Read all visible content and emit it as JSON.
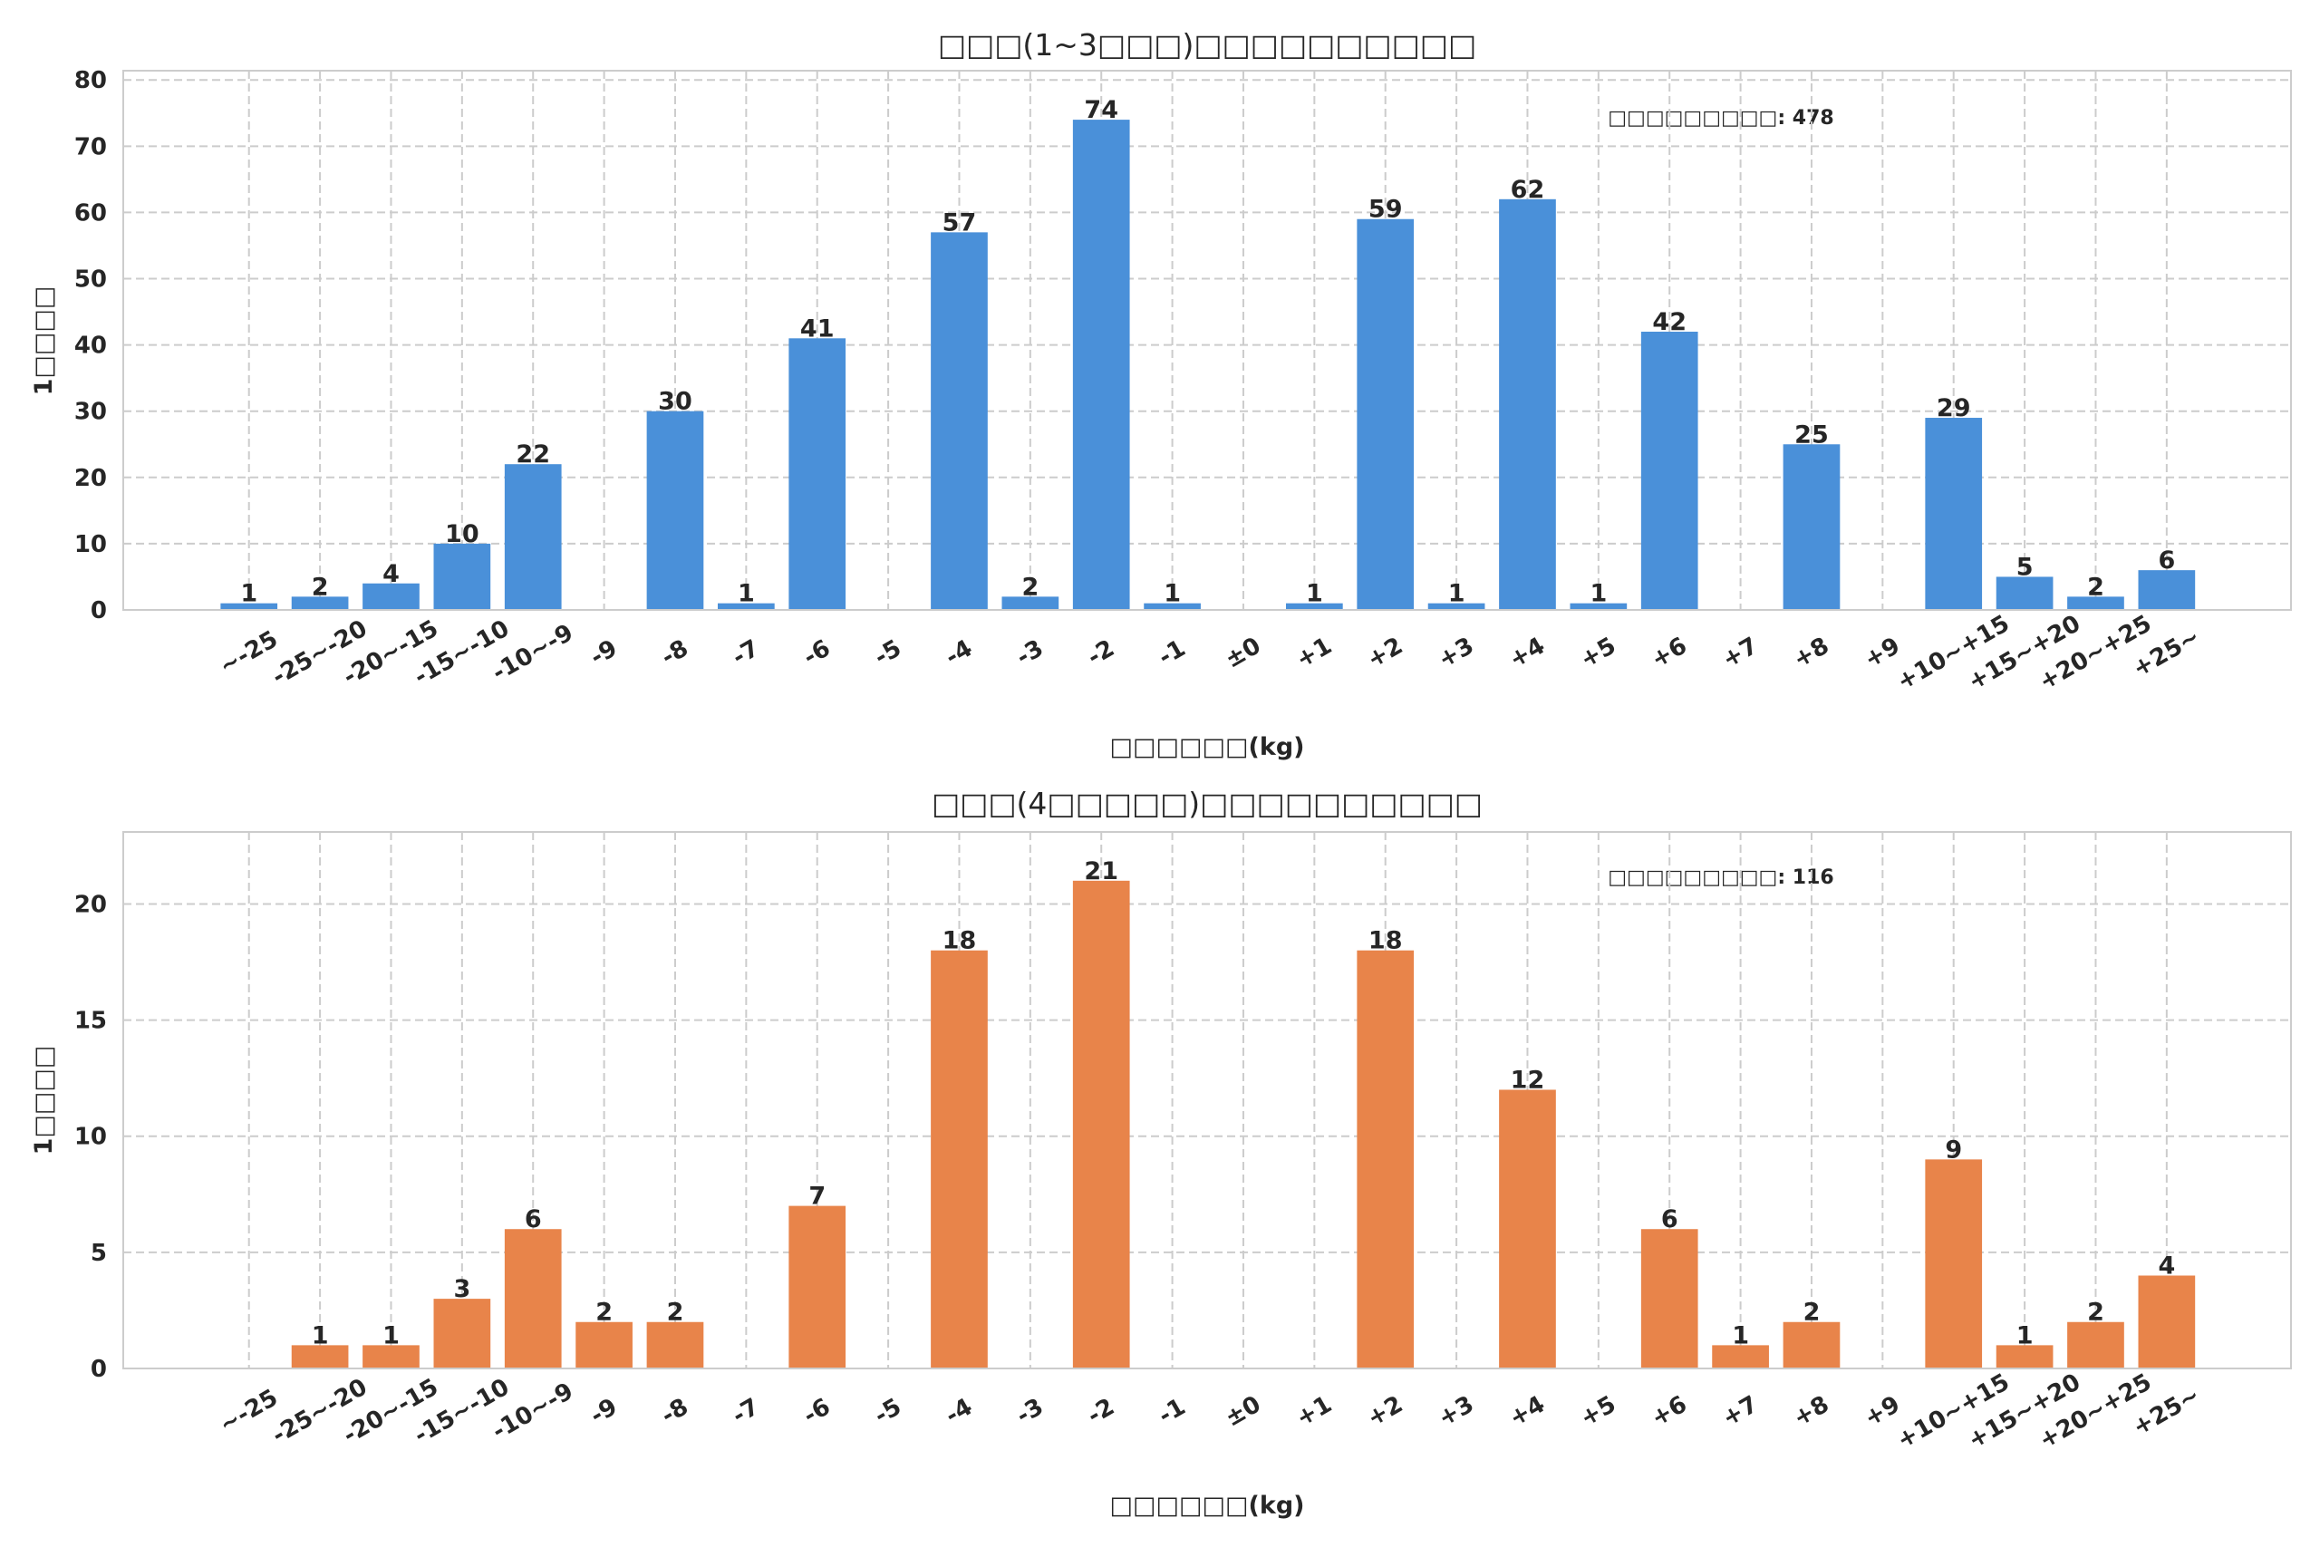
{
  "chart_data": [
    {
      "type": "bar",
      "title": "□□□(1~3□□□)□□□□□□□□□□",
      "xlabel": "□□□□□□(kg)",
      "ylabel": "1□□□□",
      "annotation": "□□□□□□□□□: 478",
      "color": "#4a90d9",
      "ylim": [
        0,
        81.4
      ],
      "yticks": [
        0,
        10,
        20,
        30,
        40,
        50,
        60,
        70,
        80
      ],
      "grid": true,
      "categories": [
        "~-25",
        "-25~-20",
        "-20~-15",
        "-15~-10",
        "-10~-9",
        "-9",
        "-8",
        "-7",
        "-6",
        "-5",
        "-4",
        "-3",
        "-2",
        "-1",
        "±0",
        "+1",
        "+2",
        "+3",
        "+4",
        "+5",
        "+6",
        "+7",
        "+8",
        "+9",
        "+10~+15",
        "+15~+20",
        "+20~+25",
        "+25~"
      ],
      "values": [
        1,
        2,
        4,
        10,
        22,
        0,
        30,
        1,
        41,
        0,
        57,
        2,
        74,
        1,
        0,
        1,
        59,
        1,
        62,
        1,
        42,
        0,
        25,
        0,
        29,
        5,
        2,
        6
      ]
    },
    {
      "type": "bar",
      "title": "□□□(4□□□□□)□□□□□□□□□□",
      "xlabel": "□□□□□□(kg)",
      "ylabel": "1□□□□",
      "annotation": "□□□□□□□□□: 116",
      "color": "#e8844a",
      "ylim": [
        0,
        23.1
      ],
      "yticks": [
        0,
        5,
        10,
        15,
        20
      ],
      "grid": true,
      "categories": [
        "~-25",
        "-25~-20",
        "-20~-15",
        "-15~-10",
        "-10~-9",
        "-9",
        "-8",
        "-7",
        "-6",
        "-5",
        "-4",
        "-3",
        "-2",
        "-1",
        "±0",
        "+1",
        "+2",
        "+3",
        "+4",
        "+5",
        "+6",
        "+7",
        "+8",
        "+9",
        "+10~+15",
        "+15~+20",
        "+20~+25",
        "+25~"
      ],
      "values": [
        0,
        1,
        1,
        3,
        6,
        2,
        2,
        0,
        7,
        0,
        18,
        0,
        21,
        0,
        0,
        0,
        18,
        0,
        12,
        0,
        6,
        1,
        2,
        0,
        9,
        1,
        2,
        4
      ]
    }
  ]
}
